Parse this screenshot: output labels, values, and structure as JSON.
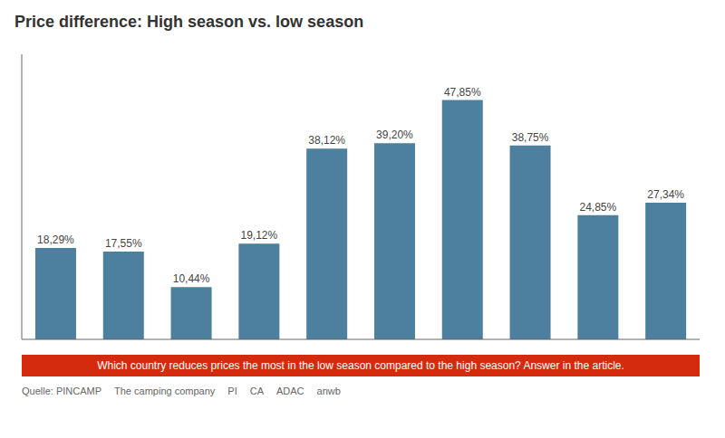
{
  "chart_data": {
    "type": "bar",
    "title": "Price difference: High season vs. low season",
    "categories": [
      null,
      null,
      null,
      null,
      null,
      null,
      null,
      null,
      null,
      null
    ],
    "values": [
      18.29,
      17.55,
      10.44,
      19.12,
      38.12,
      39.2,
      47.85,
      38.75,
      24.85,
      27.34
    ],
    "value_labels": [
      "18,29%",
      "17,55%",
      "10,44%",
      "19,12%",
      "38,12%",
      "39,20%",
      "47,85%",
      "38,75%",
      "24,85%",
      "27,34%"
    ],
    "data_labels": true,
    "color": "#4d7f9e",
    "ylim": [
      0,
      57
    ],
    "grid": false,
    "tick_labels": false,
    "annotations": [
      "Which country reduces prices the most in the low season compared to the high season? Answer in the article.",
      "Quelle: PINCAMP",
      "The camping company",
      "PI",
      "CA",
      "ADAC",
      "anwb"
    ]
  }
}
